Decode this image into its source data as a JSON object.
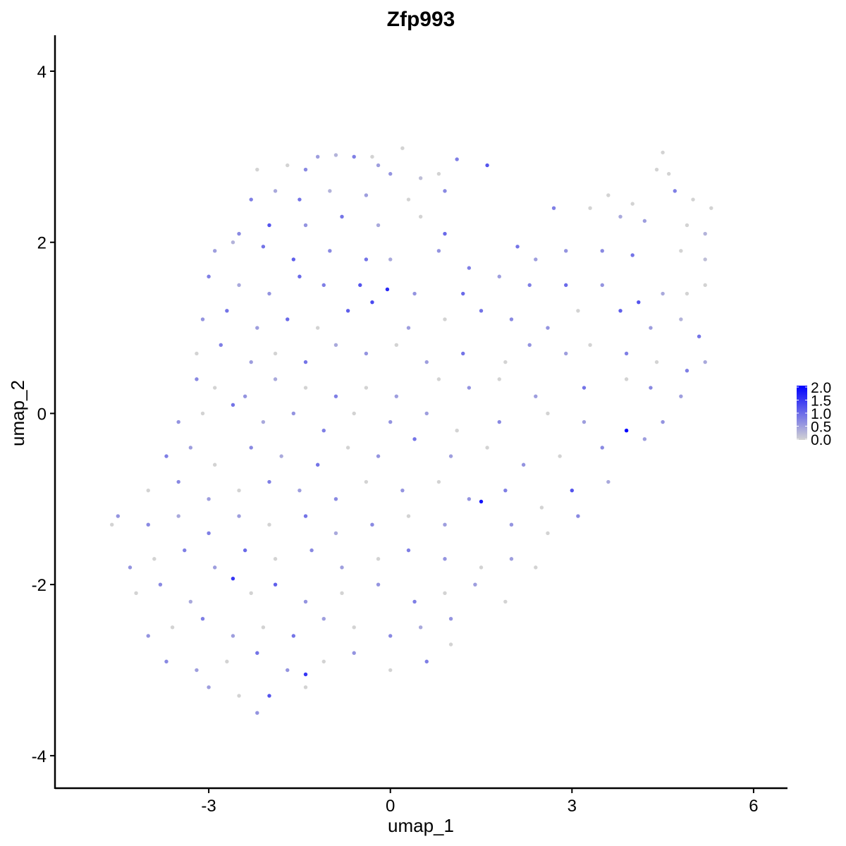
{
  "chart_data": {
    "type": "scatter",
    "title": "Zfp993",
    "xlabel": "umap_1",
    "ylabel": "umap_2",
    "xlim": [
      -5.54,
      6.56
    ],
    "ylim": [
      -4.38,
      4.42
    ],
    "x_ticks": [
      -3,
      0,
      3,
      6
    ],
    "y_ticks": [
      -4,
      -2,
      0,
      2,
      4
    ],
    "grid": false,
    "color_scale": {
      "low": "#d3d3d3",
      "high": "#0000ff",
      "min": 0,
      "max": 2.0,
      "ticks": [
        "0.0",
        "0.5",
        "1.0",
        "1.5",
        "2.0"
      ],
      "placement": "right"
    },
    "points_format": [
      "umap_1",
      "umap_2",
      "expression"
    ],
    "points": [
      [
        -1.2,
        3.0,
        0.5
      ],
      [
        -0.6,
        3.0,
        0.8
      ],
      [
        -0.3,
        3.0,
        0
      ],
      [
        0.2,
        3.1,
        0
      ],
      [
        1.1,
        2.97,
        0.8
      ],
      [
        4.5,
        3.05,
        0
      ],
      [
        -0.9,
        3.02,
        0.3
      ],
      [
        -2.2,
        2.85,
        0
      ],
      [
        -1.7,
        2.9,
        0
      ],
      [
        -1.4,
        2.85,
        0.7
      ],
      [
        0,
        2.8,
        0.6
      ],
      [
        0.5,
        2.75,
        0.2
      ],
      [
        0.8,
        2.8,
        0
      ],
      [
        1.6,
        2.9,
        1.2
      ],
      [
        4.4,
        2.85,
        0
      ],
      [
        4.6,
        2.8,
        0
      ],
      [
        -0.2,
        2.9,
        0.5
      ],
      [
        -2.3,
        2.5,
        0.8
      ],
      [
        -1.9,
        2.6,
        0.4
      ],
      [
        -1.5,
        2.5,
        0.9
      ],
      [
        -1.0,
        2.6,
        0.3
      ],
      [
        -0.4,
        2.55,
        0.5
      ],
      [
        0.3,
        2.5,
        0
      ],
      [
        0.9,
        2.6,
        0.7
      ],
      [
        3.6,
        2.55,
        0
      ],
      [
        4.0,
        2.45,
        0
      ],
      [
        4.7,
        2.6,
        0.8
      ],
      [
        5.0,
        2.5,
        0
      ],
      [
        5.3,
        2.4,
        0
      ],
      [
        -2.5,
        2.1,
        0.7
      ],
      [
        -2.0,
        2.2,
        1.2
      ],
      [
        -1.4,
        2.2,
        0.6
      ],
      [
        -0.8,
        2.3,
        0.9
      ],
      [
        -0.2,
        2.2,
        0.4
      ],
      [
        0.5,
        2.3,
        0
      ],
      [
        0.9,
        2.1,
        1.0
      ],
      [
        2.7,
        2.4,
        0.8
      ],
      [
        3.3,
        2.4,
        0
      ],
      [
        3.8,
        2.3,
        0.4
      ],
      [
        4.2,
        2.25,
        0.5
      ],
      [
        4.9,
        2.2,
        0
      ],
      [
        5.2,
        2.1,
        0.3
      ],
      [
        -2.9,
        1.9,
        0.5
      ],
      [
        -2.6,
        2.0,
        0.3
      ],
      [
        -2.1,
        1.95,
        0.9
      ],
      [
        -1.6,
        1.8,
        1.1
      ],
      [
        -1.0,
        1.9,
        0.7
      ],
      [
        -0.4,
        1.8,
        0.9
      ],
      [
        0,
        1.8,
        0.4
      ],
      [
        0.8,
        1.9,
        0.6
      ],
      [
        1.3,
        1.7,
        0.8
      ],
      [
        2.1,
        1.95,
        0.9
      ],
      [
        2.4,
        1.8,
        0.5
      ],
      [
        2.9,
        1.9,
        0.6
      ],
      [
        3.5,
        1.9,
        0.7
      ],
      [
        4.0,
        1.85,
        0.9
      ],
      [
        4.8,
        1.9,
        0
      ],
      [
        5.2,
        1.8,
        0.2
      ],
      [
        -3.0,
        1.6,
        0.8
      ],
      [
        -2.5,
        1.5,
        0.4
      ],
      [
        -2.0,
        1.4,
        0.6
      ],
      [
        -1.5,
        1.6,
        1.0
      ],
      [
        -1.1,
        1.5,
        0.8
      ],
      [
        -0.5,
        1.5,
        1.2
      ],
      [
        -0.05,
        1.45,
        1.6
      ],
      [
        0.4,
        1.4,
        0.6
      ],
      [
        1.2,
        1.4,
        1.0
      ],
      [
        1.8,
        1.6,
        0.5
      ],
      [
        2.3,
        1.5,
        0.8
      ],
      [
        2.9,
        1.5,
        1.0
      ],
      [
        3.5,
        1.5,
        0.6
      ],
      [
        4.1,
        1.3,
        1.2
      ],
      [
        4.5,
        1.4,
        0.4
      ],
      [
        4.9,
        1.4,
        0
      ],
      [
        5.2,
        1.5,
        0
      ],
      [
        -3.1,
        1.1,
        0.6
      ],
      [
        -2.7,
        1.2,
        0.9
      ],
      [
        -2.2,
        1.0,
        0.5
      ],
      [
        -1.7,
        1.1,
        1.0
      ],
      [
        -1.2,
        1.0,
        0
      ],
      [
        -0.7,
        1.2,
        1.1
      ],
      [
        -0.3,
        1.3,
        1.3
      ],
      [
        0.3,
        1.0,
        0.5
      ],
      [
        0.9,
        1.1,
        0
      ],
      [
        1.5,
        1.2,
        0.9
      ],
      [
        2.0,
        1.1,
        0.7
      ],
      [
        2.6,
        1.0,
        0.6
      ],
      [
        3.1,
        1.2,
        0
      ],
      [
        3.8,
        1.2,
        1.1
      ],
      [
        4.3,
        1.0,
        0.5
      ],
      [
        4.8,
        1.1,
        0.3
      ],
      [
        5.1,
        0.9,
        0.9
      ],
      [
        -3.2,
        0.7,
        0
      ],
      [
        -2.8,
        0.8,
        0.8
      ],
      [
        -2.3,
        0.6,
        0.5
      ],
      [
        -1.9,
        0.7,
        0
      ],
      [
        -1.4,
        0.6,
        0.9
      ],
      [
        -0.9,
        0.8,
        0.4
      ],
      [
        -0.4,
        0.7,
        0.6
      ],
      [
        0.1,
        0.8,
        0
      ],
      [
        0.6,
        0.6,
        0.5
      ],
      [
        1.2,
        0.7,
        0.9
      ],
      [
        1.9,
        0.6,
        0
      ],
      [
        2.3,
        0.8,
        0.6
      ],
      [
        2.9,
        0.7,
        0.5
      ],
      [
        3.3,
        0.8,
        0
      ],
      [
        3.9,
        0.7,
        0.8
      ],
      [
        4.4,
        0.6,
        0
      ],
      [
        4.9,
        0.5,
        0.8
      ],
      [
        5.2,
        0.6,
        0.4
      ],
      [
        -3.2,
        0.4,
        0.7
      ],
      [
        -2.9,
        0.3,
        0
      ],
      [
        -2.4,
        0.2,
        0.6
      ],
      [
        -1.9,
        0.4,
        0.4
      ],
      [
        -1.4,
        0.3,
        0
      ],
      [
        -0.9,
        0.2,
        0.8
      ],
      [
        -0.4,
        0.3,
        0
      ],
      [
        0.1,
        0.2,
        0.5
      ],
      [
        0.8,
        0.4,
        0
      ],
      [
        1.3,
        0.3,
        0.6
      ],
      [
        1.8,
        0.4,
        0
      ],
      [
        2.4,
        0.2,
        0.5
      ],
      [
        3.2,
        0.3,
        0.9
      ],
      [
        3.9,
        0.4,
        0
      ],
      [
        4.3,
        0.3,
        0.7
      ],
      [
        4.8,
        0.2,
        0.5
      ],
      [
        -3.5,
        -0.1,
        0.6
      ],
      [
        -3.1,
        0.0,
        0
      ],
      [
        -2.6,
        0.1,
        0.9
      ],
      [
        -2.1,
        -0.1,
        0.4
      ],
      [
        -1.6,
        0.0,
        0.6
      ],
      [
        -1.1,
        -0.2,
        0.8
      ],
      [
        -0.6,
        0.0,
        0
      ],
      [
        0,
        -0.1,
        0.6
      ],
      [
        0.6,
        0.0,
        0.5
      ],
      [
        1.1,
        -0.2,
        0
      ],
      [
        1.8,
        -0.1,
        0.7
      ],
      [
        2.6,
        0.0,
        0
      ],
      [
        3.2,
        -0.1,
        0.5
      ],
      [
        3.9,
        -0.2,
        2.0
      ],
      [
        4.5,
        -0.1,
        0.6
      ],
      [
        -3.7,
        -0.5,
        0.8
      ],
      [
        -3.3,
        -0.4,
        0.5
      ],
      [
        -2.9,
        -0.6,
        0
      ],
      [
        -2.3,
        -0.4,
        0.7
      ],
      [
        -1.8,
        -0.5,
        0.4
      ],
      [
        -1.2,
        -0.6,
        0.9
      ],
      [
        -0.7,
        -0.4,
        0
      ],
      [
        -0.2,
        -0.5,
        0.6
      ],
      [
        0.4,
        -0.3,
        0.9
      ],
      [
        1.0,
        -0.5,
        0.5
      ],
      [
        1.6,
        -0.4,
        0
      ],
      [
        2.2,
        -0.6,
        0.6
      ],
      [
        2.8,
        -0.5,
        0
      ],
      [
        3.5,
        -0.4,
        0.7
      ],
      [
        4.2,
        -0.3,
        0.5
      ],
      [
        -4.0,
        -0.9,
        0
      ],
      [
        -3.5,
        -0.8,
        0.7
      ],
      [
        -3.0,
        -1.0,
        0.5
      ],
      [
        -2.5,
        -0.9,
        0
      ],
      [
        -2.0,
        -0.8,
        0.8
      ],
      [
        -1.5,
        -0.9,
        0.5
      ],
      [
        -0.9,
        -1.0,
        0.7
      ],
      [
        -0.4,
        -0.8,
        0
      ],
      [
        0.2,
        -0.9,
        0.6
      ],
      [
        0.8,
        -0.8,
        0
      ],
      [
        1.3,
        -1.0,
        0.6
      ],
      [
        1.9,
        -0.9,
        0.8
      ],
      [
        2.5,
        -1.1,
        0
      ],
      [
        3.0,
        -0.9,
        1.2
      ],
      [
        3.6,
        -0.8,
        0.4
      ],
      [
        -4.6,
        -1.3,
        0
      ],
      [
        -4.5,
        -1.2,
        0.6
      ],
      [
        -4.0,
        -1.3,
        0.7
      ],
      [
        -3.5,
        -1.2,
        0.4
      ],
      [
        -3.0,
        -1.4,
        0.8
      ],
      [
        -2.5,
        -1.2,
        0.5
      ],
      [
        -2.0,
        -1.3,
        0
      ],
      [
        -1.4,
        -1.2,
        0.9
      ],
      [
        -0.9,
        -1.4,
        0.4
      ],
      [
        -0.3,
        -1.3,
        0.7
      ],
      [
        0.3,
        -1.2,
        0
      ],
      [
        0.9,
        -1.3,
        0.5
      ],
      [
        1.5,
        -1.03,
        1.8
      ],
      [
        2.0,
        -1.3,
        0.6
      ],
      [
        2.6,
        -1.4,
        0
      ],
      [
        3.1,
        -1.2,
        0.7
      ],
      [
        -4.3,
        -1.8,
        0.6
      ],
      [
        -3.9,
        -1.7,
        0
      ],
      [
        -3.4,
        -1.6,
        0.8
      ],
      [
        -2.9,
        -1.8,
        0.5
      ],
      [
        -2.4,
        -1.6,
        1.0
      ],
      [
        -1.9,
        -1.7,
        0
      ],
      [
        -1.3,
        -1.6,
        0.7
      ],
      [
        -0.8,
        -1.8,
        0.5
      ],
      [
        -0.2,
        -1.7,
        0
      ],
      [
        0.3,
        -1.6,
        0.8
      ],
      [
        0.9,
        -1.7,
        0.6
      ],
      [
        1.5,
        -1.8,
        0
      ],
      [
        2.0,
        -1.7,
        0.5
      ],
      [
        2.4,
        -1.8,
        0
      ],
      [
        -4.2,
        -2.1,
        0
      ],
      [
        -3.8,
        -2.0,
        0.7
      ],
      [
        -3.3,
        -2.2,
        0.4
      ],
      [
        -2.6,
        -1.93,
        1.5
      ],
      [
        -2.3,
        -2.1,
        0
      ],
      [
        -1.9,
        -2.0,
        1.1
      ],
      [
        -1.4,
        -2.2,
        0.6
      ],
      [
        -0.8,
        -2.1,
        0
      ],
      [
        -0.2,
        -2.0,
        0.6
      ],
      [
        0.4,
        -2.2,
        0.8
      ],
      [
        0.9,
        -2.1,
        0
      ],
      [
        1.4,
        -2.0,
        0.5
      ],
      [
        1.9,
        -2.2,
        0
      ],
      [
        -4.0,
        -2.6,
        0.6
      ],
      [
        -3.6,
        -2.5,
        0
      ],
      [
        -3.1,
        -2.4,
        0.8
      ],
      [
        -2.6,
        -2.6,
        0.5
      ],
      [
        -2.1,
        -2.5,
        0
      ],
      [
        -1.6,
        -2.6,
        0.9
      ],
      [
        -1.1,
        -2.4,
        0.5
      ],
      [
        -0.6,
        -2.5,
        0
      ],
      [
        0,
        -2.6,
        0.7
      ],
      [
        0.5,
        -2.5,
        0.4
      ],
      [
        1.0,
        -2.4,
        0.6
      ],
      [
        -3.7,
        -2.9,
        0.7
      ],
      [
        -3.2,
        -3.0,
        0.5
      ],
      [
        -2.7,
        -2.9,
        0
      ],
      [
        -2.2,
        -2.8,
        0.9
      ],
      [
        -1.7,
        -3.0,
        0.6
      ],
      [
        -1.1,
        -2.9,
        0
      ],
      [
        -0.6,
        -2.8,
        0.6
      ],
      [
        0,
        -3.0,
        0
      ],
      [
        0.6,
        -2.9,
        0.8
      ],
      [
        1.0,
        -2.7,
        0
      ],
      [
        -3.0,
        -3.2,
        0.5
      ],
      [
        -2.5,
        -3.3,
        0
      ],
      [
        -2.0,
        -3.3,
        1.2
      ],
      [
        -2.2,
        -3.5,
        0.6
      ],
      [
        -1.4,
        -3.05,
        1.5
      ],
      [
        -1.4,
        -3.2,
        0
      ]
    ]
  }
}
